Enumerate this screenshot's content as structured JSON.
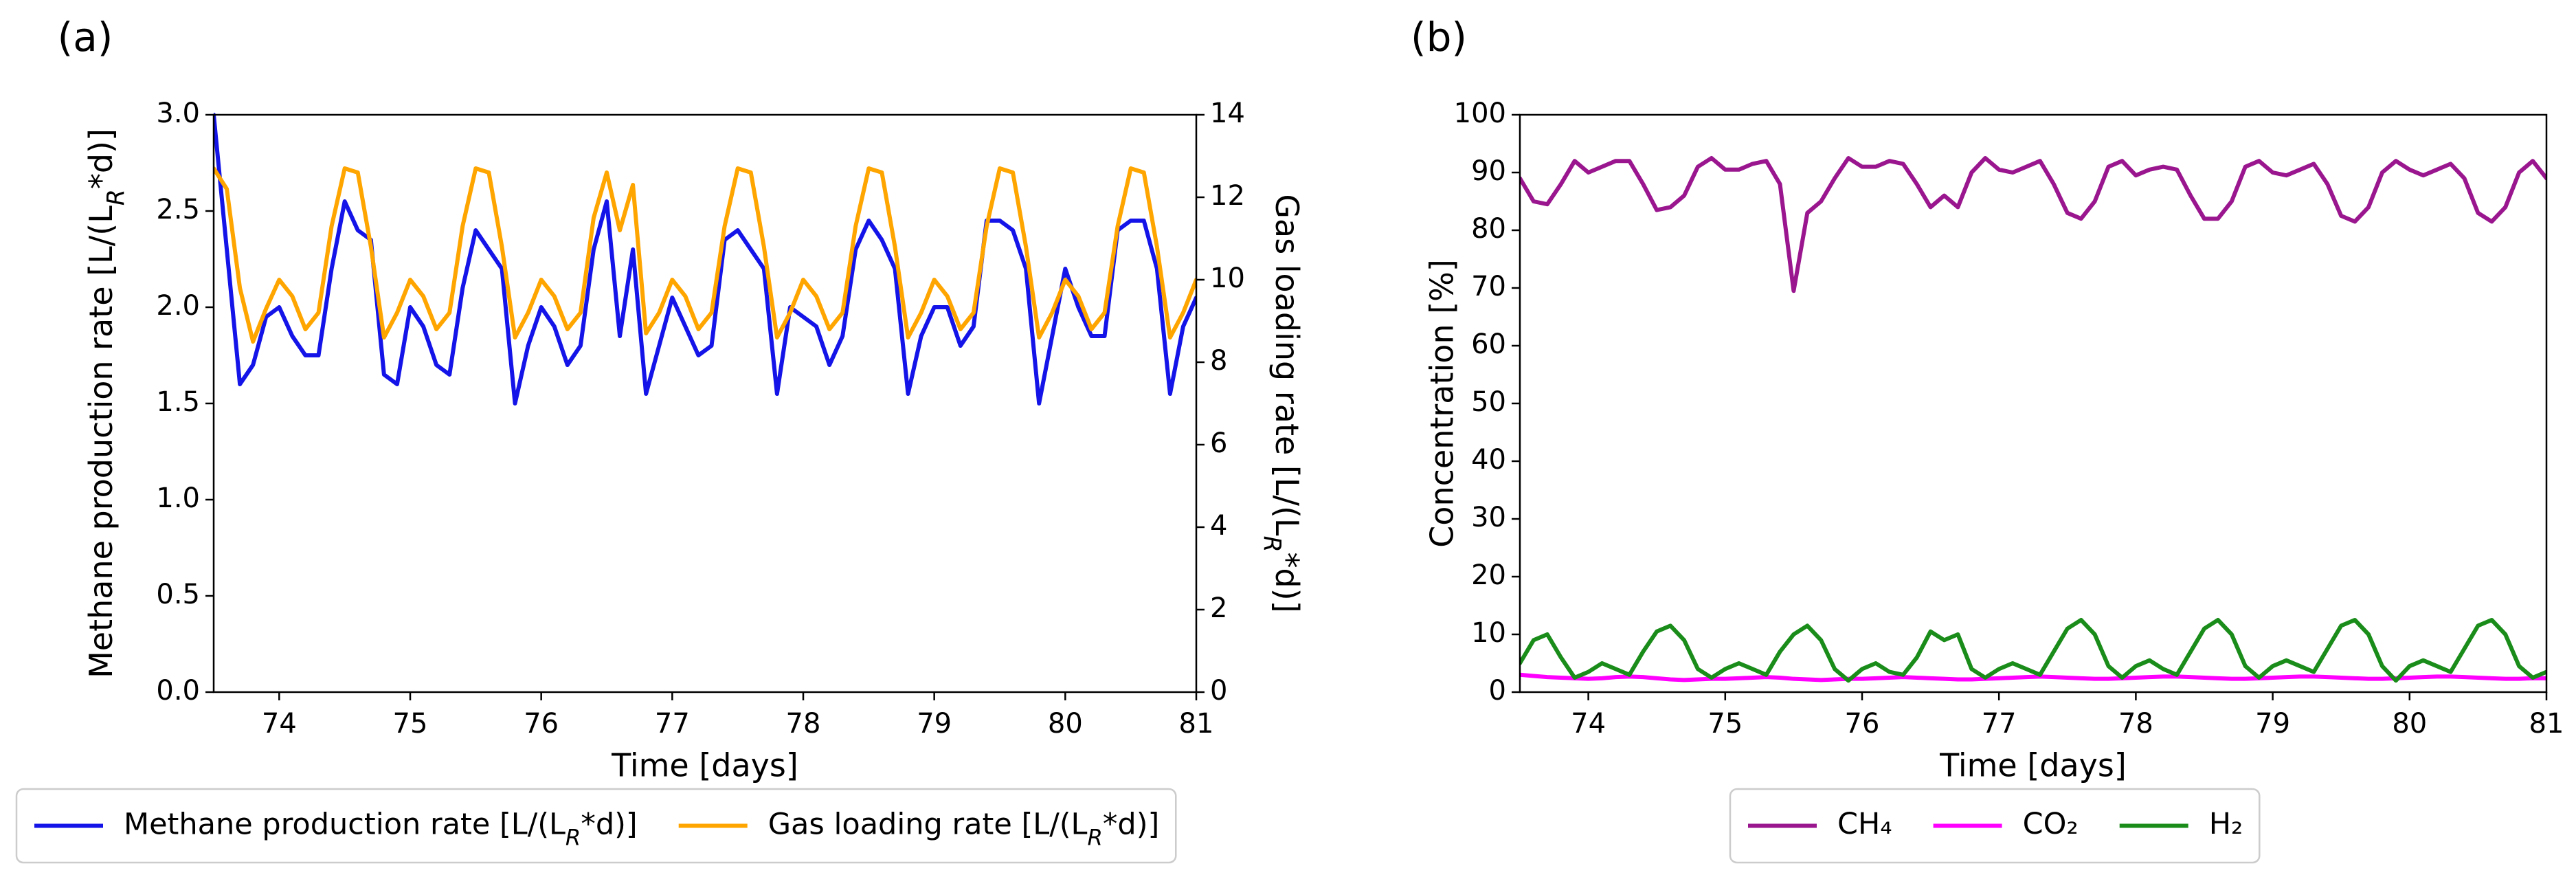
{
  "chart_data": [
    {
      "type": "line",
      "label": "(a)",
      "xlabel": "Time [days]",
      "ylabel": [
        "Methane production rate [L/(L",
        "R",
        "*d)]"
      ],
      "y2label": [
        "Gas loading rate [L/(L",
        "R",
        "*d)]"
      ],
      "xlim": [
        73.5,
        81
      ],
      "xticks": [
        74,
        75,
        76,
        77,
        78,
        79,
        80,
        81
      ],
      "ylim": [
        0,
        3
      ],
      "yticks": [
        {
          "value": 0,
          "label": "0.0"
        },
        0.5,
        {
          "value": 1,
          "label": "1.0"
        },
        1.5,
        {
          "value": 2,
          "label": "2.0"
        },
        2.5,
        {
          "value": 3,
          "label": "3.0"
        }
      ],
      "y2lim": [
        0,
        14
      ],
      "y2ticks": [
        0,
        2,
        4,
        6,
        8,
        10,
        12,
        14
      ],
      "legend": "below",
      "x": [
        73.5,
        73.6,
        73.7,
        73.8,
        73.9,
        74.0,
        74.1,
        74.2,
        74.3,
        74.4,
        74.5,
        74.6,
        74.7,
        74.8,
        74.9,
        75.0,
        75.1,
        75.2,
        75.3,
        75.4,
        75.5,
        75.6,
        75.7,
        75.8,
        75.9,
        76.0,
        76.1,
        76.2,
        76.3,
        76.4,
        76.5,
        76.6,
        76.7,
        76.8,
        76.9,
        77.0,
        77.1,
        77.2,
        77.3,
        77.4,
        77.5,
        77.6,
        77.7,
        77.8,
        77.9,
        78.0,
        78.1,
        78.2,
        78.3,
        78.4,
        78.5,
        78.6,
        78.7,
        78.8,
        78.9,
        79.0,
        79.1,
        79.2,
        79.3,
        79.4,
        79.5,
        79.6,
        79.7,
        79.8,
        79.9,
        80.0,
        80.1,
        80.2,
        80.3,
        80.4,
        80.5,
        80.6,
        80.7,
        80.8,
        80.9,
        81.0
      ],
      "series": [
        {
          "name": [
            "Methane production rate [L/(L",
            "R",
            "*d)]"
          ],
          "color": "#1414e8",
          "values": [
            3.0,
            2.3,
            1.6,
            1.7,
            1.95,
            2.0,
            1.85,
            1.75,
            1.75,
            2.2,
            2.55,
            2.4,
            2.35,
            1.65,
            1.6,
            2.0,
            1.9,
            1.7,
            1.65,
            2.1,
            2.4,
            2.3,
            2.2,
            1.5,
            1.8,
            2.0,
            1.9,
            1.7,
            1.8,
            2.3,
            2.55,
            1.85,
            2.3,
            1.55,
            1.8,
            2.05,
            1.9,
            1.75,
            1.8,
            2.35,
            2.4,
            2.3,
            2.2,
            1.55,
            2.0,
            1.95,
            1.9,
            1.7,
            1.85,
            2.3,
            2.45,
            2.35,
            2.2,
            1.55,
            1.85,
            2.0,
            2.0,
            1.8,
            1.9,
            2.45,
            2.45,
            2.4,
            2.2,
            1.5,
            1.85,
            2.2,
            2.0,
            1.85,
            1.85,
            2.4,
            2.45,
            2.45,
            2.2,
            1.55,
            1.9,
            2.05
          ]
        },
        {
          "name": [
            "Gas loading rate [L/(L",
            "R",
            "*d)]"
          ],
          "color": "#ffa500",
          "axis": "y2",
          "values": [
            12.7,
            12.2,
            9.8,
            8.5,
            9.3,
            10.0,
            9.6,
            8.8,
            9.2,
            11.3,
            12.7,
            12.6,
            10.8,
            8.6,
            9.2,
            10.0,
            9.6,
            8.8,
            9.2,
            11.3,
            12.7,
            12.6,
            10.8,
            8.6,
            9.2,
            10.0,
            9.6,
            8.8,
            9.2,
            11.5,
            12.6,
            11.2,
            12.3,
            8.7,
            9.2,
            10.0,
            9.6,
            8.8,
            9.2,
            11.3,
            12.7,
            12.6,
            10.8,
            8.6,
            9.2,
            10.0,
            9.6,
            8.8,
            9.2,
            11.3,
            12.7,
            12.6,
            10.8,
            8.6,
            9.2,
            10.0,
            9.6,
            8.8,
            9.2,
            11.3,
            12.7,
            12.6,
            10.8,
            8.6,
            9.2,
            10.0,
            9.6,
            8.8,
            9.2,
            11.3,
            12.7,
            12.6,
            10.8,
            8.6,
            9.2,
            10.0
          ]
        }
      ]
    },
    {
      "type": "line",
      "label": "(b)",
      "xlabel": "Time [days]",
      "ylabel": "Concentration [%]",
      "xlim": [
        73.5,
        81
      ],
      "xticks": [
        74,
        75,
        76,
        77,
        78,
        79,
        80,
        81
      ],
      "ylim": [
        0,
        100
      ],
      "yticks": [
        0,
        10,
        20,
        30,
        40,
        50,
        60,
        70,
        80,
        90,
        100
      ],
      "legend": "below",
      "x": [
        73.5,
        73.6,
        73.7,
        73.8,
        73.9,
        74.0,
        74.1,
        74.2,
        74.3,
        74.4,
        74.5,
        74.6,
        74.7,
        74.8,
        74.9,
        75.0,
        75.1,
        75.2,
        75.3,
        75.4,
        75.5,
        75.6,
        75.7,
        75.8,
        75.9,
        76.0,
        76.1,
        76.2,
        76.3,
        76.4,
        76.5,
        76.6,
        76.7,
        76.8,
        76.9,
        77.0,
        77.1,
        77.2,
        77.3,
        77.4,
        77.5,
        77.6,
        77.7,
        77.8,
        77.9,
        78.0,
        78.1,
        78.2,
        78.3,
        78.4,
        78.5,
        78.6,
        78.7,
        78.8,
        78.9,
        79.0,
        79.1,
        79.2,
        79.3,
        79.4,
        79.5,
        79.6,
        79.7,
        79.8,
        79.9,
        80.0,
        80.1,
        80.2,
        80.3,
        80.4,
        80.5,
        80.6,
        80.7,
        80.8,
        80.9,
        81.0
      ],
      "series": [
        {
          "name": "CH₄",
          "color": "#9a168f",
          "values": [
            89,
            85,
            84.5,
            88,
            92,
            90,
            91,
            92,
            92,
            88,
            83.5,
            84,
            86,
            91,
            92.5,
            90.5,
            90.5,
            91.5,
            92,
            88,
            69.5,
            83,
            85,
            89,
            92.5,
            91,
            91,
            92,
            91.5,
            88,
            84,
            86,
            84,
            90,
            92.5,
            90.5,
            90,
            91,
            92,
            88,
            83,
            82,
            85,
            91,
            92,
            89.5,
            90.5,
            91,
            90.5,
            86,
            82,
            82,
            85,
            91,
            92,
            90,
            89.5,
            90.5,
            91.5,
            88,
            82.5,
            81.5,
            84,
            90,
            92,
            90.5,
            89.5,
            90.5,
            91.5,
            89,
            83,
            81.5,
            84,
            90,
            92,
            89
          ]
        },
        {
          "name": "CO₂",
          "color": "#ff00ff",
          "values": [
            3,
            2.8,
            2.6,
            2.5,
            2.4,
            2.3,
            2.4,
            2.6,
            2.7,
            2.6,
            2.4,
            2.2,
            2.1,
            2.2,
            2.3,
            2.3,
            2.4,
            2.5,
            2.6,
            2.5,
            2.3,
            2.2,
            2.1,
            2.2,
            2.3,
            2.3,
            2.4,
            2.5,
            2.6,
            2.5,
            2.4,
            2.3,
            2.2,
            2.2,
            2.3,
            2.4,
            2.5,
            2.6,
            2.7,
            2.6,
            2.5,
            2.4,
            2.3,
            2.3,
            2.4,
            2.5,
            2.6,
            2.7,
            2.7,
            2.6,
            2.5,
            2.4,
            2.3,
            2.3,
            2.4,
            2.5,
            2.6,
            2.7,
            2.7,
            2.6,
            2.5,
            2.4,
            2.3,
            2.3,
            2.4,
            2.5,
            2.6,
            2.7,
            2.7,
            2.6,
            2.5,
            2.4,
            2.3,
            2.3,
            2.4,
            2.4
          ]
        },
        {
          "name": "H₂",
          "color": "#1a8c1a",
          "values": [
            5,
            9,
            10,
            6,
            2.5,
            3.5,
            5,
            4,
            3,
            7,
            10.5,
            11.5,
            9,
            4,
            2.5,
            4,
            5,
            4,
            3,
            7,
            10,
            11.5,
            9,
            4,
            2,
            4,
            5,
            3.5,
            3,
            6,
            10.5,
            9,
            10,
            4,
            2.5,
            4,
            5,
            4,
            3,
            7,
            11,
            12.5,
            10,
            4.5,
            2.5,
            4.5,
            5.5,
            4,
            3,
            7,
            11,
            12.5,
            10,
            4.5,
            2.5,
            4.5,
            5.5,
            4.5,
            3.5,
            7.5,
            11.5,
            12.5,
            10,
            4.5,
            2,
            4.5,
            5.5,
            4.5,
            3.5,
            7.5,
            11.5,
            12.5,
            10,
            4.5,
            2.5,
            3.5
          ]
        }
      ]
    }
  ]
}
